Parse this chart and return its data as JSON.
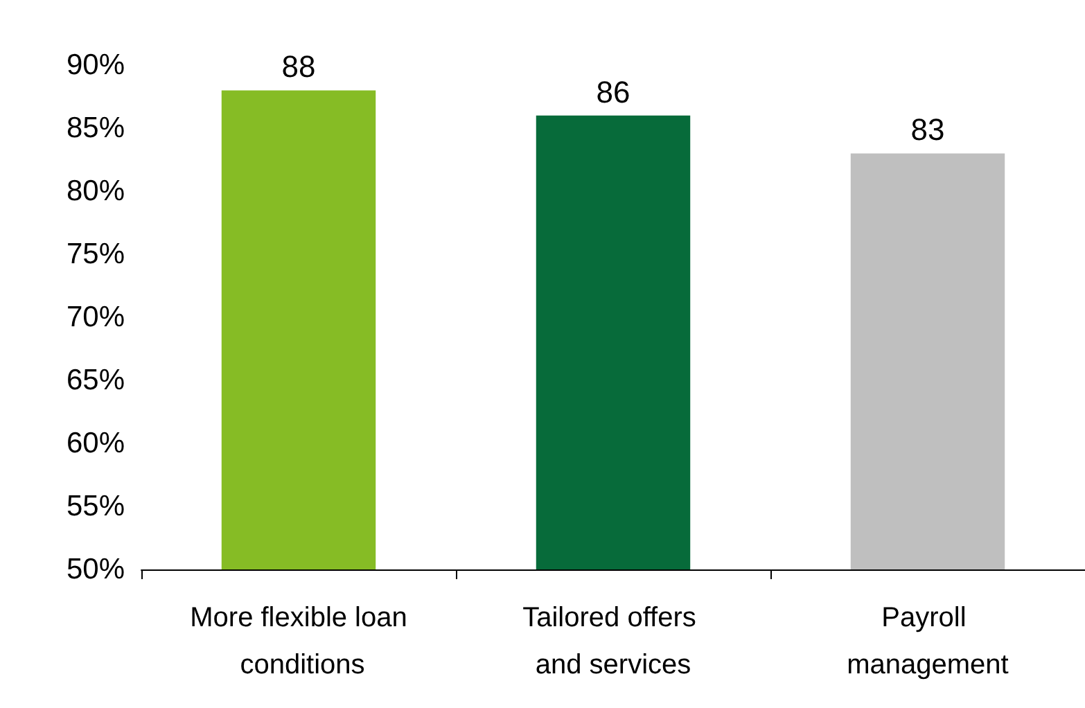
{
  "chart_data": {
    "type": "bar",
    "categories": [
      "More flexible loan conditions",
      "Tailored offers and services",
      "Payroll management"
    ],
    "values": [
      88,
      86,
      83
    ],
    "colors": [
      "#86bc25",
      "#076b3a",
      "#bfbfbf"
    ],
    "ylim": [
      50,
      90
    ],
    "yticks": [
      {
        "value": 50,
        "label": "50%"
      },
      {
        "value": 55,
        "label": "55%"
      },
      {
        "value": 60,
        "label": "60%"
      },
      {
        "value": 65,
        "label": "65%"
      },
      {
        "value": 70,
        "label": "70%"
      },
      {
        "value": 75,
        "label": "75%"
      },
      {
        "value": 80,
        "label": "80%"
      },
      {
        "value": 85,
        "label": "85%"
      },
      {
        "value": 90,
        "label": "90%"
      }
    ],
    "data_labels": true,
    "grid": false
  }
}
